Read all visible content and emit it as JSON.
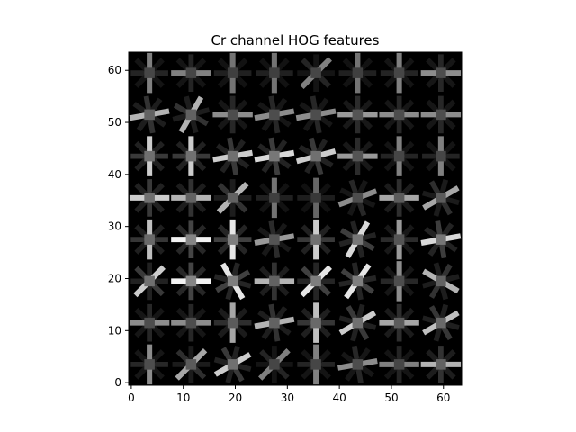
{
  "chart_data": {
    "type": "heatmap",
    "title": "Cr channel HOG features",
    "xlabel": "",
    "ylabel": "",
    "colormap": "gray",
    "background_color": "#000000",
    "x_range": [
      -0.5,
      63.5
    ],
    "y_range": [
      63.5,
      -0.5
    ],
    "x_ticks": [
      0,
      10,
      20,
      30,
      40,
      50,
      60
    ],
    "y_ticks": [
      0,
      10,
      20,
      30,
      40,
      50,
      60
    ],
    "grid": false,
    "cell_size": 8,
    "cells_per_side": 8,
    "dominant_orientation_deg": [
      [
        90,
        45,
        30,
        45,
        90,
        10,
        0,
        0
      ],
      [
        0,
        0,
        90,
        10,
        90,
        30,
        0,
        30
      ],
      [
        45,
        0,
        120,
        0,
        45,
        55,
        90,
        150
      ],
      [
        90,
        0,
        90,
        10,
        90,
        60,
        90,
        10
      ],
      [
        0,
        0,
        45,
        90,
        90,
        20,
        0,
        30
      ],
      [
        90,
        90,
        10,
        10,
        15,
        0,
        90,
        90
      ],
      [
        10,
        60,
        0,
        10,
        10,
        0,
        0,
        0
      ],
      [
        90,
        0,
        90,
        90,
        45,
        90,
        90,
        0
      ]
    ],
    "orientation_strength": [
      [
        0.55,
        0.65,
        0.8,
        0.5,
        0.5,
        0.55,
        0.5,
        0.7
      ],
      [
        0.55,
        0.55,
        0.65,
        0.7,
        0.75,
        0.8,
        0.65,
        0.75
      ],
      [
        0.8,
        0.95,
        0.9,
        0.7,
        0.9,
        0.9,
        0.55,
        0.7
      ],
      [
        0.75,
        0.95,
        0.9,
        0.6,
        0.8,
        0.85,
        0.6,
        0.85
      ],
      [
        0.8,
        0.7,
        0.7,
        0.45,
        0.4,
        0.55,
        0.65,
        0.65
      ],
      [
        0.8,
        0.8,
        0.8,
        0.85,
        0.8,
        0.6,
        0.5,
        0.5
      ],
      [
        0.7,
        0.7,
        0.55,
        0.55,
        0.55,
        0.6,
        0.55,
        0.55
      ],
      [
        0.5,
        0.5,
        0.45,
        0.45,
        0.5,
        0.45,
        0.5,
        0.55
      ]
    ]
  }
}
